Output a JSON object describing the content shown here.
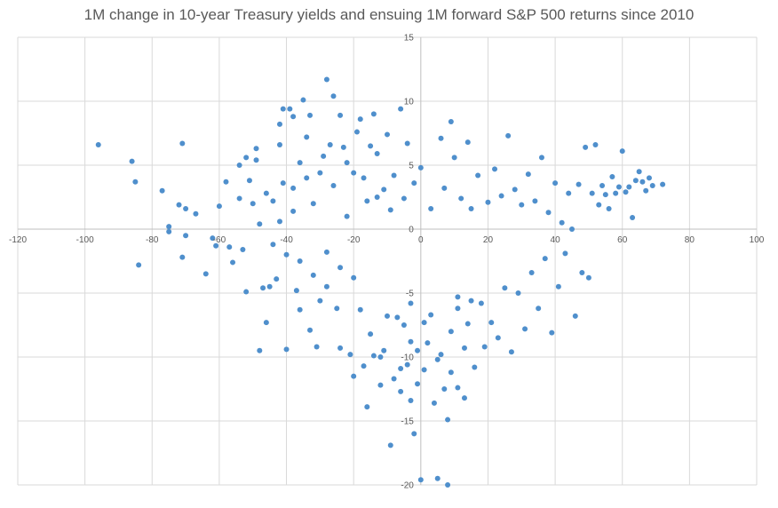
{
  "chart_data": {
    "type": "scatter",
    "title": "1M change in 10-year Treasury yields and ensuing 1M forward S&P 500 returns since 2010",
    "xlabel": "",
    "ylabel": "",
    "xlim": [
      -120,
      100
    ],
    "ylim": [
      -20,
      15
    ],
    "x_ticks": [
      -120,
      -100,
      -80,
      -60,
      -40,
      -20,
      0,
      20,
      40,
      60,
      80,
      100
    ],
    "y_ticks": [
      -20,
      -15,
      -10,
      -5,
      0,
      5,
      10,
      15
    ],
    "grid": true,
    "legend": "none",
    "point_color": "#4f8fcc",
    "series": [
      {
        "points": [
          [
            -96,
            6.6
          ],
          [
            -86,
            5.3
          ],
          [
            -85,
            3.7
          ],
          [
            -84,
            -2.8
          ],
          [
            -77,
            3.0
          ],
          [
            -75,
            0.2
          ],
          [
            -75,
            -0.2
          ],
          [
            -72,
            1.9
          ],
          [
            -71,
            6.7
          ],
          [
            -71,
            -2.2
          ],
          [
            -70,
            1.6
          ],
          [
            -70,
            -0.5
          ],
          [
            -67,
            1.2
          ],
          [
            -64,
            -3.5
          ],
          [
            -62,
            -0.7
          ],
          [
            -61,
            -1.3
          ],
          [
            -60,
            1.8
          ],
          [
            -58,
            3.7
          ],
          [
            -57,
            -1.4
          ],
          [
            -56,
            -2.6
          ],
          [
            -54,
            5.0
          ],
          [
            -54,
            2.4
          ],
          [
            -53,
            -1.6
          ],
          [
            -52,
            5.6
          ],
          [
            -52,
            -4.9
          ],
          [
            -51,
            3.8
          ],
          [
            -49,
            6.3
          ],
          [
            -49,
            5.4
          ],
          [
            -48,
            -9.5
          ],
          [
            -47,
            -4.6
          ],
          [
            -46,
            -7.3
          ],
          [
            -45,
            -4.5
          ],
          [
            -44,
            2.2
          ],
          [
            -43,
            -3.9
          ],
          [
            -42,
            8.2
          ],
          [
            -42,
            6.6
          ],
          [
            -41,
            9.4
          ],
          [
            -41,
            3.6
          ],
          [
            -40,
            -9.4
          ],
          [
            -39,
            9.4
          ],
          [
            -38,
            8.8
          ],
          [
            -38,
            1.4
          ],
          [
            -37,
            -4.8
          ],
          [
            -36,
            -6.3
          ],
          [
            -36,
            5.2
          ],
          [
            -35,
            10.1
          ],
          [
            -34,
            7.2
          ],
          [
            -33,
            8.9
          ],
          [
            -33,
            -7.9
          ],
          [
            -32,
            2.0
          ],
          [
            -31,
            -9.2
          ],
          [
            -30,
            4.4
          ],
          [
            -30,
            -5.6
          ],
          [
            -29,
            5.7
          ],
          [
            -28,
            11.7
          ],
          [
            -28,
            -4.5
          ],
          [
            -27,
            6.6
          ],
          [
            -26,
            10.4
          ],
          [
            -26,
            3.4
          ],
          [
            -25,
            -6.2
          ],
          [
            -24,
            8.9
          ],
          [
            -24,
            -9.3
          ],
          [
            -23,
            6.4
          ],
          [
            -22,
            5.2
          ],
          [
            -22,
            1.0
          ],
          [
            -21,
            -9.8
          ],
          [
            -20,
            4.4
          ],
          [
            -20,
            -3.8
          ],
          [
            -19,
            7.6
          ],
          [
            -18,
            8.6
          ],
          [
            -18,
            -6.3
          ],
          [
            -17,
            -10.7
          ],
          [
            -17,
            4.0
          ],
          [
            -16,
            2.2
          ],
          [
            -16,
            -13.9
          ],
          [
            -15,
            6.5
          ],
          [
            -15,
            -8.2
          ],
          [
            -14,
            9.0
          ],
          [
            -13,
            5.9
          ],
          [
            -13,
            2.5
          ],
          [
            -12,
            -10.0
          ],
          [
            -11,
            3.1
          ],
          [
            -11,
            -9.5
          ],
          [
            -10,
            7.4
          ],
          [
            -10,
            -6.8
          ],
          [
            -9,
            -16.9
          ],
          [
            -9,
            1.5
          ],
          [
            -8,
            -11.7
          ],
          [
            -8,
            4.2
          ],
          [
            -7,
            -6.9
          ],
          [
            -6,
            9.4
          ],
          [
            -6,
            -12.7
          ],
          [
            -5,
            2.4
          ],
          [
            -4,
            -10.6
          ],
          [
            -4,
            6.7
          ],
          [
            -3,
            -13.4
          ],
          [
            -3,
            -5.8
          ],
          [
            -2,
            -16.0
          ],
          [
            -2,
            3.6
          ],
          [
            -1,
            -12.1
          ],
          [
            0,
            -19.6
          ],
          [
            0,
            4.8
          ],
          [
            1,
            -7.3
          ],
          [
            2,
            -8.9
          ],
          [
            3,
            1.6
          ],
          [
            4,
            -13.6
          ],
          [
            5,
            -19.5
          ],
          [
            6,
            7.1
          ],
          [
            6,
            -9.8
          ],
          [
            7,
            3.2
          ],
          [
            8,
            -14.9
          ],
          [
            8,
            -20.0
          ],
          [
            9,
            8.4
          ],
          [
            9,
            -11.2
          ],
          [
            10,
            5.6
          ],
          [
            11,
            -5.3
          ],
          [
            11,
            -12.4
          ],
          [
            12,
            2.4
          ],
          [
            13,
            -13.2
          ],
          [
            14,
            6.8
          ],
          [
            14,
            -7.4
          ],
          [
            15,
            1.6
          ],
          [
            16,
            -10.8
          ],
          [
            17,
            4.2
          ],
          [
            18,
            -5.8
          ],
          [
            19,
            -9.2
          ],
          [
            20,
            2.1
          ],
          [
            21,
            -7.3
          ],
          [
            22,
            4.7
          ],
          [
            23,
            -8.5
          ],
          [
            24,
            2.6
          ],
          [
            25,
            -4.6
          ],
          [
            26,
            7.3
          ],
          [
            27,
            -9.6
          ],
          [
            28,
            3.1
          ],
          [
            29,
            -5.0
          ],
          [
            30,
            1.9
          ],
          [
            31,
            -7.8
          ],
          [
            32,
            4.3
          ],
          [
            33,
            -3.4
          ],
          [
            34,
            2.2
          ],
          [
            35,
            -6.2
          ],
          [
            36,
            5.6
          ],
          [
            37,
            -2.3
          ],
          [
            38,
            1.3
          ],
          [
            39,
            -8.1
          ],
          [
            40,
            3.6
          ],
          [
            41,
            -4.5
          ],
          [
            42,
            0.5
          ],
          [
            43,
            -1.9
          ],
          [
            44,
            2.8
          ],
          [
            45,
            0.0
          ],
          [
            46,
            -6.8
          ],
          [
            47,
            3.5
          ],
          [
            48,
            -3.4
          ],
          [
            49,
            6.4
          ],
          [
            50,
            -3.8
          ],
          [
            51,
            2.8
          ],
          [
            52,
            6.6
          ],
          [
            53,
            1.9
          ],
          [
            54,
            3.4
          ],
          [
            55,
            2.7
          ],
          [
            56,
            1.6
          ],
          [
            57,
            4.1
          ],
          [
            58,
            2.8
          ],
          [
            59,
            3.3
          ],
          [
            60,
            6.1
          ],
          [
            61,
            2.9
          ],
          [
            62,
            3.3
          ],
          [
            63,
            0.9
          ],
          [
            64,
            3.8
          ],
          [
            65,
            4.5
          ],
          [
            66,
            3.7
          ],
          [
            67,
            3.0
          ],
          [
            68,
            4.0
          ],
          [
            69,
            3.4
          ],
          [
            72,
            3.5
          ],
          [
            -20,
            -11.5
          ],
          [
            -14,
            -9.9
          ],
          [
            -12,
            -12.2
          ],
          [
            -6,
            -10.9
          ],
          [
            -5,
            -7.5
          ],
          [
            -3,
            -8.8
          ],
          [
            -1,
            -9.5
          ],
          [
            1,
            -11.0
          ],
          [
            3,
            -6.7
          ],
          [
            5,
            -10.2
          ],
          [
            7,
            -12.5
          ],
          [
            9,
            -8.0
          ],
          [
            11,
            -6.2
          ],
          [
            13,
            -9.3
          ],
          [
            15,
            -5.6
          ],
          [
            -36,
            -2.5
          ],
          [
            -32,
            -3.6
          ],
          [
            -28,
            -1.8
          ],
          [
            -24,
            -3.0
          ],
          [
            -40,
            -2.0
          ],
          [
            -44,
            -1.2
          ],
          [
            -48,
            0.4
          ],
          [
            -50,
            2.0
          ],
          [
            -46,
            2.8
          ],
          [
            -42,
            0.6
          ],
          [
            -38,
            3.2
          ],
          [
            -34,
            4.0
          ]
        ]
      }
    ]
  }
}
